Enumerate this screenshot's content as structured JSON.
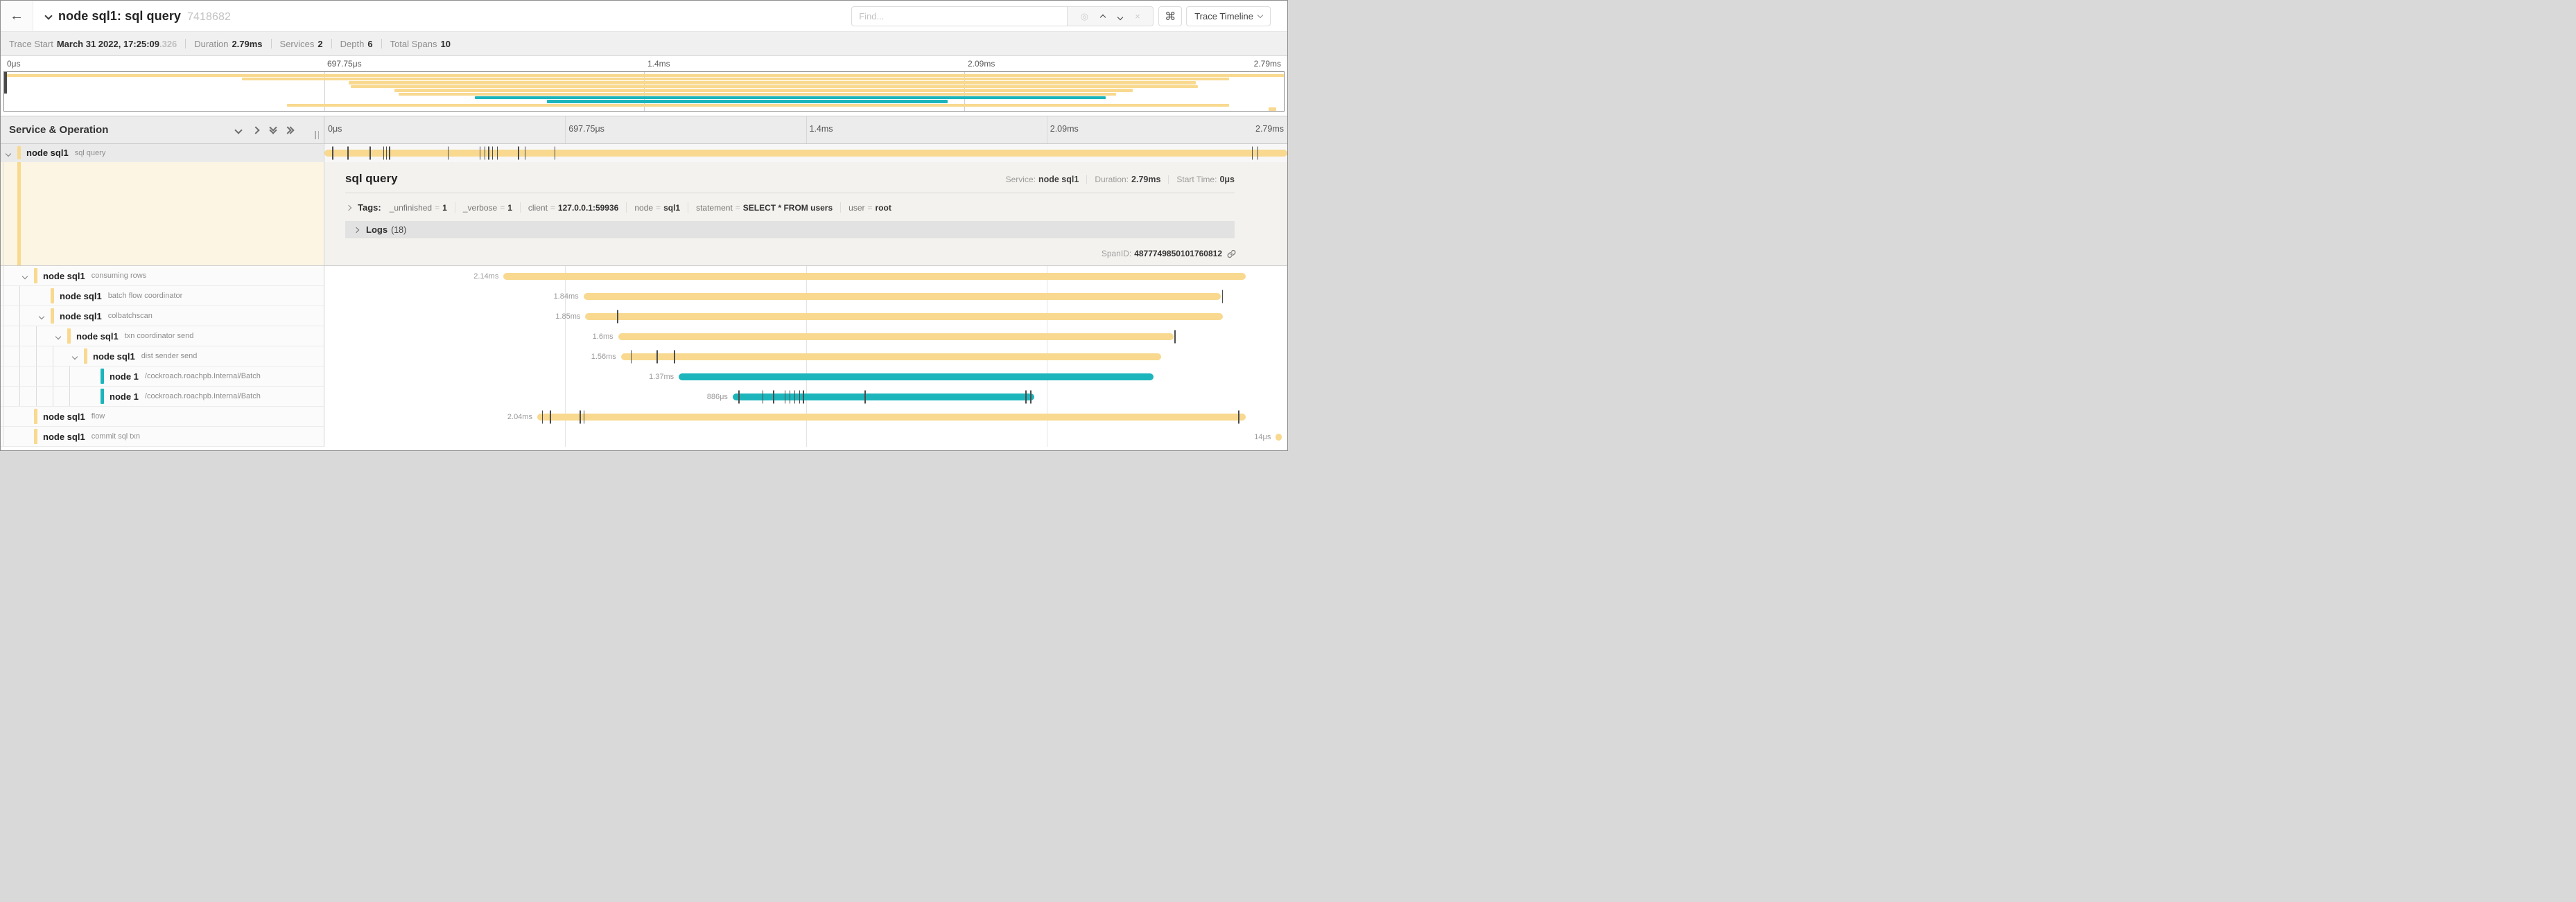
{
  "colors": {
    "yellow": "#F8D98F",
    "teal": "#1CB5BC",
    "cream": "#FCF5E4",
    "detail_bg": "#F4F2EE"
  },
  "header": {
    "back_icon": "←",
    "title": "node sql1: sql query",
    "trace_id_short": "7418682",
    "find_placeholder": "Find...",
    "locate_icon": "◎",
    "clear_icon": "×",
    "shortcut_icon": "⌘",
    "view_button_label": "Trace Timeline"
  },
  "stats": [
    {
      "label": "Trace Start",
      "value": "March 31 2022, 17:25:09",
      "suffix": ".326"
    },
    {
      "label": "Duration",
      "value": "2.79ms",
      "suffix": ""
    },
    {
      "label": "Services",
      "value": "2",
      "suffix": ""
    },
    {
      "label": "Depth",
      "value": "6",
      "suffix": ""
    },
    {
      "label": "Total Spans",
      "value": "10",
      "suffix": ""
    }
  ],
  "ruler": {
    "ticks": [
      "0μs",
      "697.75μs",
      "1.4ms",
      "2.09ms",
      "2.79ms"
    ],
    "positions_pct": [
      0,
      25,
      50,
      75,
      100
    ]
  },
  "left_panel": {
    "header": "Service & Operation"
  },
  "spans": [
    {
      "service": "node sql1",
      "operation": "sql query",
      "indent": 0,
      "has_children": true,
      "selected": true,
      "color": "yellow",
      "start_pct": 0,
      "end_pct": 100,
      "label": "",
      "ticks": [
        0.8,
        2.4,
        4.7,
        6.1,
        6.4,
        6.7,
        12.8,
        16.1,
        16.6,
        17.0,
        17.4,
        17.9,
        20.1,
        20.8,
        23.9,
        96.3,
        96.9
      ]
    },
    {
      "service": "node sql1",
      "operation": "consuming rows",
      "indent": 1,
      "has_children": true,
      "selected": false,
      "color": "yellow",
      "start_pct": 18.6,
      "end_pct": 95.7,
      "label": "2.14ms",
      "ticks": []
    },
    {
      "service": "node sql1",
      "operation": "batch flow coordinator",
      "indent": 2,
      "has_children": false,
      "selected": false,
      "color": "yellow",
      "start_pct": 26.9,
      "end_pct": 93.1,
      "label": "1.84ms",
      "ticks": [
        93.2
      ]
    },
    {
      "service": "node sql1",
      "operation": "colbatchscan",
      "indent": 2,
      "has_children": true,
      "selected": false,
      "color": "yellow",
      "start_pct": 27.1,
      "end_pct": 93.3,
      "label": "1.85ms",
      "ticks": [
        30.4
      ]
    },
    {
      "service": "node sql1",
      "operation": "txn coordinator send",
      "indent": 3,
      "has_children": true,
      "selected": false,
      "color": "yellow",
      "start_pct": 30.5,
      "end_pct": 88.2,
      "label": "1.6ms",
      "ticks": [
        88.3
      ]
    },
    {
      "service": "node sql1",
      "operation": "dist sender send",
      "indent": 4,
      "has_children": true,
      "selected": false,
      "color": "yellow",
      "start_pct": 30.8,
      "end_pct": 86.9,
      "label": "1.56ms",
      "ticks": [
        31.8,
        34.5,
        36.3
      ]
    },
    {
      "service": "node 1",
      "operation": "/cockroach.roachpb.Internal/Batch",
      "indent": 5,
      "has_children": false,
      "selected": false,
      "color": "teal",
      "start_pct": 36.8,
      "end_pct": 86.1,
      "label": "1.37ms",
      "ticks": []
    },
    {
      "service": "node 1",
      "operation": "/cockroach.roachpb.Internal/Batch",
      "indent": 5,
      "has_children": false,
      "selected": false,
      "color": "teal",
      "start_pct": 42.4,
      "end_pct": 73.7,
      "label": "886μs",
      "ticks": [
        43.0,
        45.5,
        46.6,
        47.8,
        48.3,
        48.8,
        49.3,
        49.7,
        56.1,
        72.8,
        73.3
      ]
    },
    {
      "service": "node sql1",
      "operation": "flow",
      "indent": 1,
      "has_children": false,
      "selected": false,
      "color": "yellow",
      "start_pct": 22.1,
      "end_pct": 95.7,
      "label": "2.04ms",
      "ticks": [
        22.6,
        23.4,
        26.5,
        26.9,
        94.9
      ]
    },
    {
      "service": "node sql1",
      "operation": "commit sql txn",
      "indent": 1,
      "has_children": false,
      "selected": false,
      "color": "yellow",
      "start_pct": 98.8,
      "end_pct": 99.4,
      "label": "14μs",
      "ticks": []
    }
  ],
  "detail": {
    "title": "sql query",
    "service_label": "Service:",
    "service": "node sql1",
    "duration_label": "Duration:",
    "duration": "2.79ms",
    "start_label": "Start Time:",
    "start": "0μs",
    "tags_label": "Tags:",
    "tags": [
      {
        "key": "_unfinished",
        "value": "1"
      },
      {
        "key": "_verbose",
        "value": "1"
      },
      {
        "key": "client",
        "value": "127.0.0.1:59936"
      },
      {
        "key": "node",
        "value": "sql1"
      },
      {
        "key": "statement",
        "value": "SELECT * FROM users"
      },
      {
        "key": "user",
        "value": "root"
      }
    ],
    "logs_label": "Logs",
    "logs_count": "(18)",
    "spanid_label": "SpanID:",
    "spanid": "4877749850101760812"
  }
}
